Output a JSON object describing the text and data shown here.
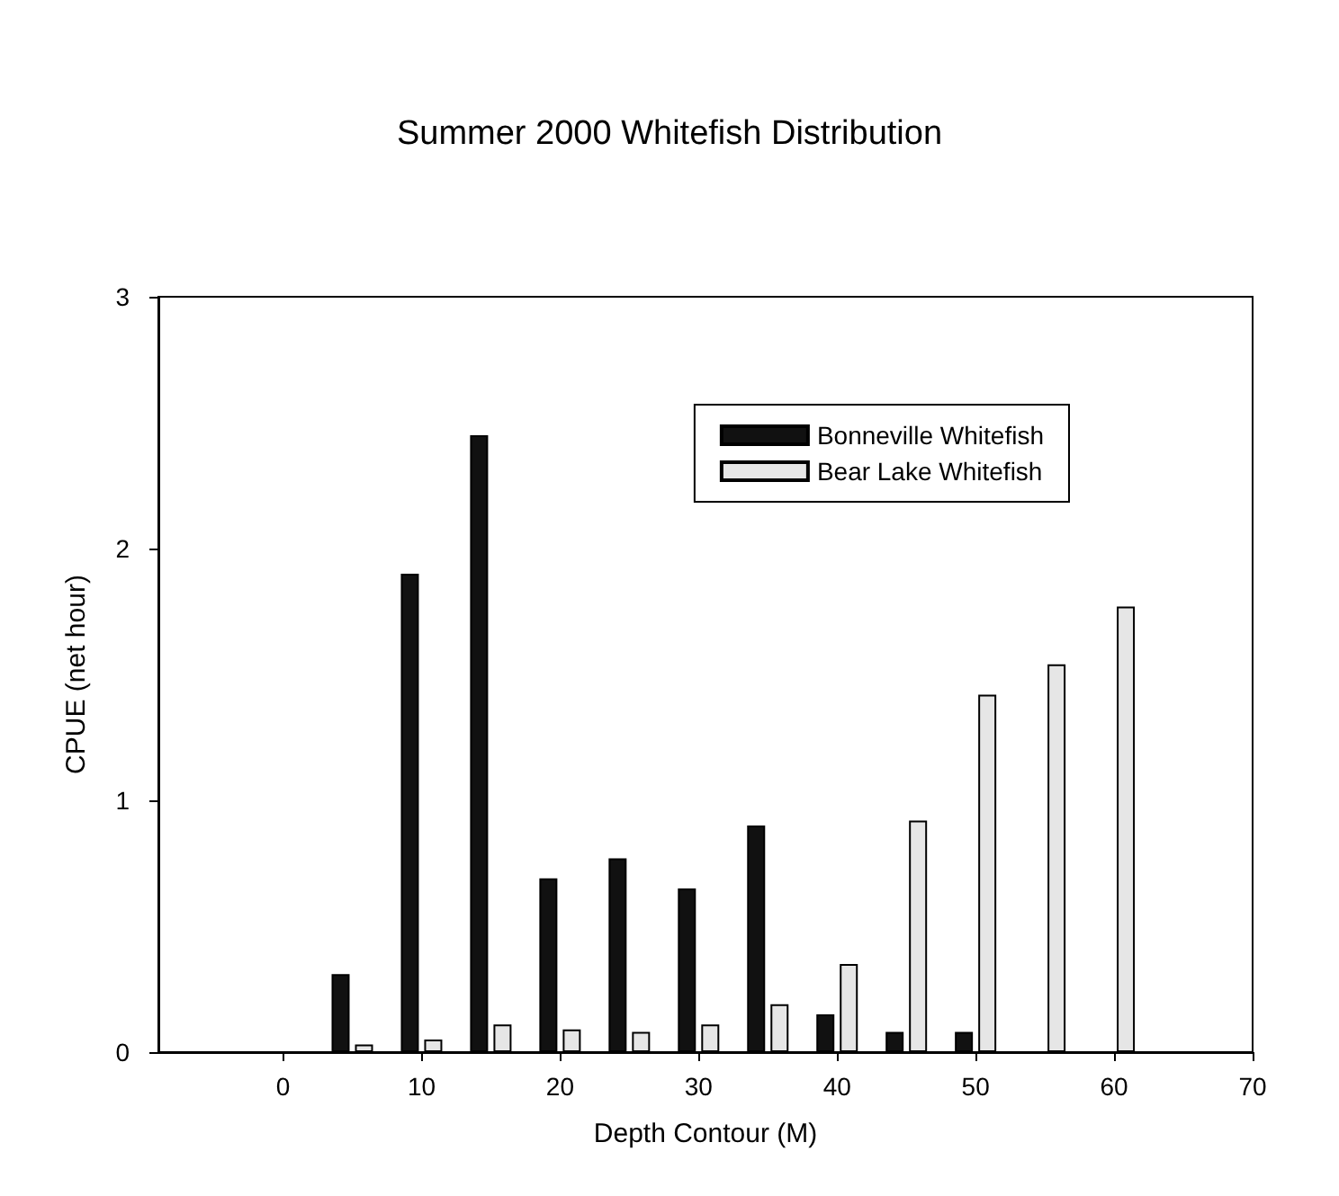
{
  "chart_data": {
    "type": "bar",
    "title": "Summer 2000 Whitefish Distribution",
    "xlabel": "Depth Contour (M)",
    "ylabel": "CPUE (net hour)",
    "x": [
      5,
      10,
      15,
      20,
      25,
      30,
      35,
      40,
      45,
      50,
      55,
      60
    ],
    "series": [
      {
        "name": "Bonneville Whitefish",
        "color": "#111111",
        "values": [
          0.31,
          1.9,
          2.45,
          0.69,
          0.77,
          0.65,
          0.9,
          0.15,
          0.08,
          0.08,
          null,
          null
        ]
      },
      {
        "name": "Bear Lake Whitefish",
        "color": "#e6e6e6",
        "values": [
          0.03,
          0.05,
          0.11,
          0.09,
          0.08,
          0.11,
          0.19,
          0.35,
          0.92,
          1.42,
          1.54,
          1.77
        ]
      }
    ],
    "xlim": [
      -9,
      70
    ],
    "xticks": [
      0,
      10,
      20,
      30,
      40,
      50,
      60,
      70
    ],
    "ylim": [
      0,
      3
    ],
    "yticks": [
      0,
      1,
      2,
      3
    ],
    "grid": false,
    "legend": "top right"
  }
}
